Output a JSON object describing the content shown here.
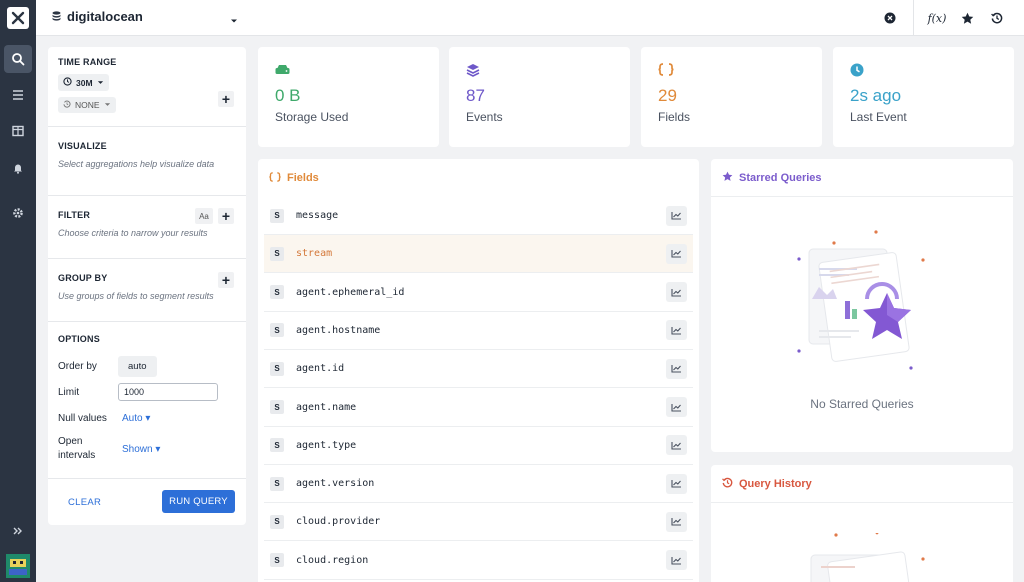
{
  "topbar": {
    "datasource": "digitalocean",
    "icons": [
      "close-circle-icon",
      "function-icon",
      "star-icon",
      "history-icon"
    ],
    "function_label": "f(x)"
  },
  "rail": {
    "items": [
      "search-icon",
      "list-icon",
      "board-icon",
      "bell-icon",
      "gear-icon"
    ],
    "expand_icon": "double-chevron-right-icon"
  },
  "query": {
    "time_range": {
      "title": "TIME RANGE",
      "value": "30M",
      "compare": "NONE"
    },
    "visualize": {
      "title": "VISUALIZE",
      "hint": "Select aggregations help visualize data"
    },
    "filter": {
      "title": "FILTER",
      "hint": "Choose criteria to narrow your results",
      "case_label": "Aa"
    },
    "group_by": {
      "title": "GROUP BY",
      "hint": "Use groups of fields to segment results"
    },
    "options": {
      "title": "OPTIONS",
      "order_by_label": "Order by",
      "order_by_value": "auto",
      "limit_label": "Limit",
      "limit_value": "1000",
      "null_label": "Null values",
      "null_value": "Auto",
      "open_label_1": "Open",
      "open_label_2": "intervals",
      "open_value": "Shown"
    },
    "clear_label": "CLEAR",
    "run_label": "RUN QUERY"
  },
  "stats": [
    {
      "value": "0 B",
      "label": "Storage Used",
      "color": "#3fa96b"
    },
    {
      "value": "87",
      "label": "Events",
      "color": "#6e58c9"
    },
    {
      "value": "29",
      "label": "Fields",
      "color": "#e08a3a"
    },
    {
      "value": "2s ago",
      "label": "Last Event",
      "color": "#3aa2c9"
    }
  ],
  "fields": {
    "title": "Fields",
    "icon_label": "{}",
    "type_tag": "S",
    "items": [
      "message",
      "stream",
      "agent.ephemeral_id",
      "agent.hostname",
      "agent.id",
      "agent.name",
      "agent.type",
      "agent.version",
      "cloud.provider",
      "cloud.region"
    ]
  },
  "starred": {
    "title": "Starred Queries",
    "empty": "No Starred Queries"
  },
  "history": {
    "title": "Query History"
  }
}
